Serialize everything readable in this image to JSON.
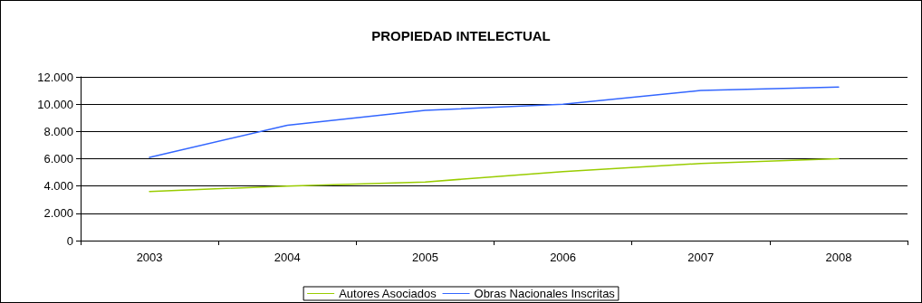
{
  "chart_data": {
    "type": "line",
    "title": "PROPIEDAD INTELECTUAL",
    "categories": [
      "2003",
      "2004",
      "2005",
      "2006",
      "2007",
      "2008"
    ],
    "series": [
      {
        "name": "Autores Asociados",
        "color": "#99cc00",
        "values": [
          3600,
          4000,
          4300,
          5050,
          5650,
          6000
        ]
      },
      {
        "name": "Obras Nacionales Inscritas",
        "color": "#3366ff",
        "values": [
          6100,
          8450,
          9550,
          10000,
          11000,
          11250
        ]
      }
    ],
    "ylim": [
      0,
      12000
    ],
    "yticks": [
      {
        "value": 0,
        "label": "0"
      },
      {
        "value": 2000,
        "label": "2.000"
      },
      {
        "value": 4000,
        "label": "4.000"
      },
      {
        "value": 6000,
        "label": "6.000"
      },
      {
        "value": 8000,
        "label": "8.000"
      },
      {
        "value": 10000,
        "label": "10.000"
      },
      {
        "value": 12000,
        "label": "12.000"
      }
    ],
    "grid": "y",
    "legend": "bottom",
    "marker": "none",
    "line_style": "solid"
  }
}
